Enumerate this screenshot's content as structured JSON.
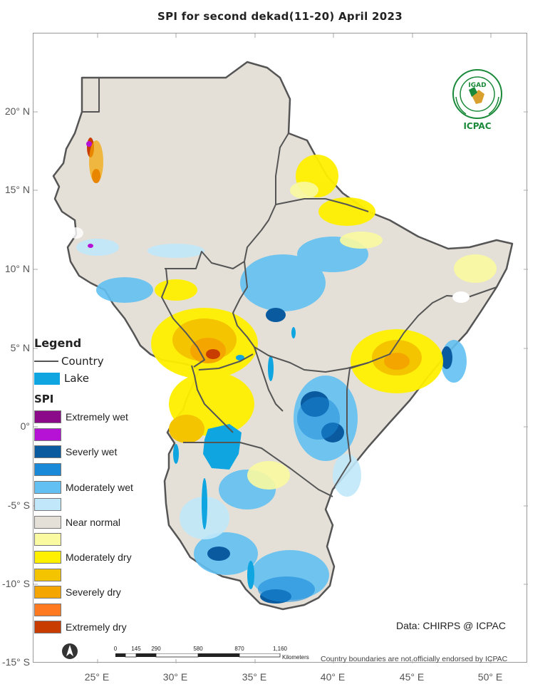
{
  "title": "SPI   for  second dekad(11-20) April 2023",
  "latitude_labels": [
    "20° N",
    "15° N",
    "10° N",
    "5° N",
    "0°",
    "-5° S",
    "-10° S",
    "-15° S"
  ],
  "longitude_labels": [
    "25° E",
    "30° E",
    "35° E",
    "40° E",
    "45° E",
    "50° E"
  ],
  "legend": {
    "title": "Legend",
    "country_label": "Country",
    "lake_label": "Lake",
    "spi_title": "SPI",
    "classes": [
      {
        "label": "Extremely wet",
        "color": "#8b0a8a"
      },
      {
        "label": "",
        "color": "#b512d6"
      },
      {
        "label": "Severly wet",
        "color": "#0a5aa0"
      },
      {
        "label": "",
        "color": "#1a8ad8"
      },
      {
        "label": "Moderately wet",
        "color": "#62c0f2"
      },
      {
        "label": "",
        "color": "#c0e8fa"
      },
      {
        "label": "Near normal",
        "color": "#e4e0d8"
      },
      {
        "label": "",
        "color": "#fafaa0"
      },
      {
        "label": "Moderately dry",
        "color": "#fff000"
      },
      {
        "label": "",
        "color": "#f4c400"
      },
      {
        "label": "Severely dry",
        "color": "#f5a500"
      },
      {
        "label": "",
        "color": "#ff7a20"
      },
      {
        "label": "Extremely dry",
        "color": "#c83c00"
      }
    ]
  },
  "logo": {
    "org": "IGAD",
    "name": "ICPAC"
  },
  "source": "Data: CHIRPS @ ICPAC",
  "disclaimer": "Country boundaries are not officially endorsed by ICPAC",
  "scalebar": {
    "ticks": [
      "0",
      "145",
      "290",
      "580",
      "870",
      "1,160"
    ],
    "units": "Kilometers"
  }
}
